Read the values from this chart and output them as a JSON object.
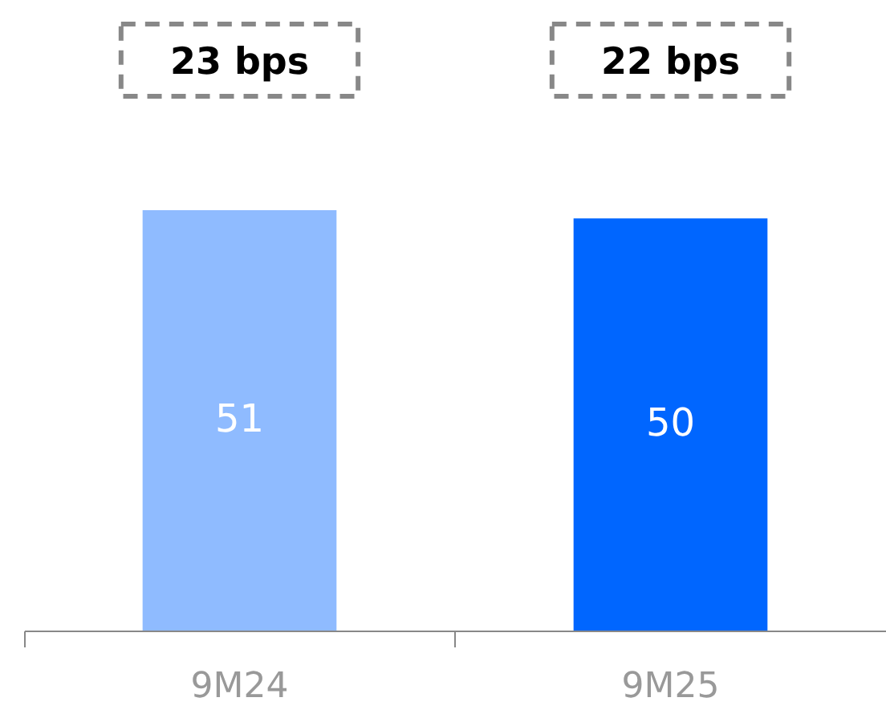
{
  "chart_data": {
    "type": "bar",
    "categories": [
      "9M24",
      "9M25"
    ],
    "values": [
      51,
      50
    ],
    "colors": [
      "#8fbbff",
      "#0066ff"
    ],
    "data_labels": true,
    "annotations": [
      "23 bps",
      "22 bps"
    ]
  }
}
